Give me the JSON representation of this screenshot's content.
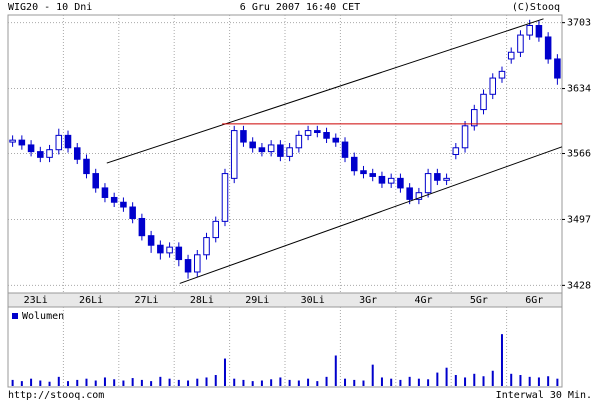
{
  "chart_data": {
    "type": "candlestick",
    "title": "WIG20 - 10 Dni",
    "subtitle": "6 Gru 2007 16:40 CET",
    "copyright": "(C)Stooq",
    "footer_left": "http://stooq.com",
    "footer_right": "Interwal 30 Min.",
    "categories": [
      "23Li",
      "26Li",
      "27Li",
      "28Li",
      "29Li",
      "30Li",
      "3Gr",
      "4Gr",
      "5Gr",
      "6Gr"
    ],
    "open": [
      3578,
      3580,
      3575,
      3568,
      3562,
      3570,
      3585,
      3572,
      3560,
      3545,
      3530,
      3520,
      3515,
      3510,
      3498,
      3480,
      3470,
      3462,
      3468,
      3455,
      3442,
      3460,
      3478,
      3495,
      3540,
      3590,
      3578,
      3572,
      3568,
      3575,
      3563,
      3572,
      3585,
      3590,
      3588,
      3582,
      3578,
      3562,
      3548,
      3545,
      3542,
      3535,
      3540,
      3530,
      3518,
      3525,
      3545,
      3538,
      3565,
      3572,
      3595,
      3612,
      3628,
      3645,
      3665,
      3672,
      3690,
      3700,
      3688,
      3665
    ],
    "high": [
      3585,
      3585,
      3580,
      3573,
      3575,
      3592,
      3590,
      3577,
      3565,
      3550,
      3535,
      3525,
      3520,
      3515,
      3503,
      3485,
      3475,
      3473,
      3473,
      3460,
      3465,
      3483,
      3500,
      3550,
      3595,
      3595,
      3583,
      3577,
      3580,
      3580,
      3577,
      3590,
      3595,
      3595,
      3593,
      3587,
      3583,
      3567,
      3553,
      3550,
      3547,
      3545,
      3545,
      3535,
      3530,
      3550,
      3550,
      3545,
      3577,
      3600,
      3617,
      3633,
      3650,
      3657,
      3677,
      3695,
      3706,
      3705,
      3693,
      3670
    ],
    "low": [
      3573,
      3570,
      3563,
      3557,
      3557,
      3565,
      3567,
      3555,
      3540,
      3525,
      3515,
      3510,
      3505,
      3493,
      3475,
      3462,
      3455,
      3457,
      3448,
      3435,
      3437,
      3455,
      3473,
      3490,
      3535,
      3573,
      3567,
      3563,
      3563,
      3558,
      3558,
      3567,
      3580,
      3583,
      3577,
      3573,
      3557,
      3543,
      3540,
      3537,
      3530,
      3530,
      3525,
      3513,
      3513,
      3520,
      3533,
      3533,
      3560,
      3567,
      3590,
      3607,
      3623,
      3640,
      3660,
      3667,
      3685,
      3683,
      3660,
      3638
    ],
    "close": [
      3580,
      3575,
      3568,
      3562,
      3570,
      3585,
      3572,
      3560,
      3545,
      3530,
      3520,
      3515,
      3510,
      3498,
      3480,
      3470,
      3462,
      3468,
      3455,
      3442,
      3460,
      3478,
      3495,
      3545,
      3590,
      3578,
      3572,
      3568,
      3575,
      3563,
      3572,
      3585,
      3590,
      3588,
      3582,
      3578,
      3562,
      3548,
      3545,
      3542,
      3535,
      3540,
      3530,
      3518,
      3525,
      3545,
      3538,
      3540,
      3572,
      3595,
      3612,
      3628,
      3645,
      3652,
      3672,
      3690,
      3700,
      3688,
      3665,
      3645
    ],
    "color": "#0000cc",
    "ylim": [
      3420,
      3711
    ],
    "yticks": [
      3428,
      3497,
      3566,
      3634,
      3703
    ],
    "grid": true,
    "trendlines": [
      {
        "x": [
          10.2,
          57.5
        ],
        "y": [
          3556,
          3707
        ],
        "color": "#000000"
      },
      {
        "x": [
          18.1,
          59.5
        ],
        "y": [
          3430,
          3573
        ],
        "color": "#000000"
      },
      {
        "x": [
          22.7,
          59.5
        ],
        "y": [
          3597,
          3597
        ],
        "color": "#cc0000"
      }
    ],
    "volume": {
      "name": "Wolumen",
      "color": "#0000cc",
      "values": [
        10,
        8,
        12,
        9,
        7,
        15,
        8,
        10,
        12,
        9,
        14,
        11,
        9,
        13,
        10,
        8,
        15,
        12,
        10,
        9,
        12,
        14,
        18,
        45,
        12,
        10,
        8,
        9,
        11,
        14,
        10,
        9,
        12,
        8,
        15,
        50,
        12,
        10,
        9,
        35,
        14,
        12,
        10,
        15,
        12,
        11,
        22,
        30,
        18,
        14,
        20,
        16,
        25,
        85,
        20,
        18,
        15,
        14,
        16,
        12
      ],
      "ylim": [
        0,
        100
      ]
    }
  }
}
